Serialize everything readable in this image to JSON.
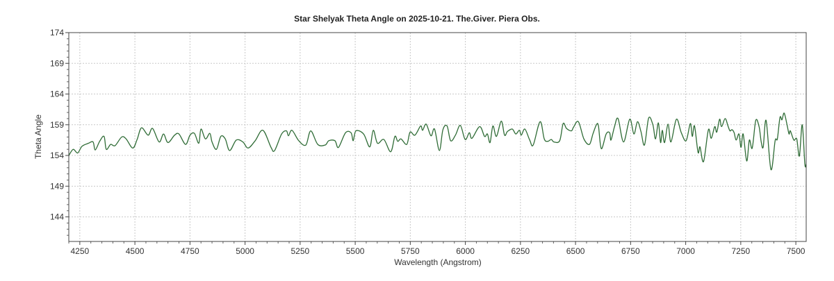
{
  "chart_data": {
    "type": "line",
    "title": "Star Shelyak Theta Angle on 2025-10-21.  The.Giver.  Piera Obs.",
    "xlabel": "Wavelength (Angstrom)",
    "ylabel": "Theta  Angle",
    "xlim": [
      4200,
      7547
    ],
    "ylim": [
      140,
      174
    ],
    "x_ticks": [
      4250,
      4500,
      4750,
      5000,
      5250,
      5500,
      5750,
      6000,
      6250,
      6500,
      6750,
      7000,
      7250,
      7500
    ],
    "y_ticks": [
      144,
      149,
      154,
      159,
      164,
      169,
      174
    ],
    "grid": true,
    "legend": "none",
    "line_color": "#2e6b35",
    "series": [
      {
        "x": [
          4200,
          4220,
          4240,
          4260,
          4290,
          4310,
          4320,
          4340,
          4360,
          4370,
          4390,
          4410,
          4440,
          4460,
          4490,
          4510,
          4530,
          4560,
          4580,
          4610,
          4630,
          4650,
          4680,
          4700,
          4730,
          4750,
          4770,
          4790,
          4800,
          4820,
          4840,
          4850,
          4870,
          4890,
          4910,
          4930,
          4960,
          4990,
          5014,
          5046,
          5081,
          5118,
          5134,
          5166,
          5188,
          5197,
          5213,
          5244,
          5276,
          5298,
          5330,
          5364,
          5380,
          5408,
          5424,
          5456,
          5481,
          5491,
          5503,
          5538,
          5566,
          5582,
          5601,
          5630,
          5661,
          5680,
          5693,
          5708,
          5734,
          5749,
          5771,
          5797,
          5806,
          5822,
          5844,
          5860,
          5882,
          5898,
          5917,
          5933,
          5955,
          5977,
          5999,
          6018,
          6030,
          6065,
          6087,
          6100,
          6112,
          6125,
          6141,
          6163,
          6178,
          6191,
          6213,
          6229,
          6245,
          6254,
          6270,
          6292,
          6308,
          6339,
          6358,
          6374,
          6390,
          6402,
          6428,
          6444,
          6459,
          6481,
          6491,
          6513,
          6538,
          6563,
          6579,
          6595,
          6604,
          6617,
          6639,
          6655,
          6661,
          6677,
          6693,
          6718,
          6746,
          6765,
          6781,
          6797,
          6813,
          6832,
          6851,
          6863,
          6876,
          6886,
          6894,
          6904,
          6920,
          6933,
          6958,
          6980,
          7002,
          7021,
          7030,
          7040,
          7056,
          7065,
          7081,
          7103,
          7116,
          7132,
          7141,
          7154,
          7163,
          7179,
          7192,
          7201,
          7210,
          7220,
          7229,
          7242,
          7251,
          7261,
          7277,
          7289,
          7302,
          7318,
          7333,
          7343,
          7352,
          7365,
          7387,
          7406,
          7416,
          7428,
          7437,
          7447,
          7460,
          7469,
          7475,
          7491,
          7504,
          7516,
          7529,
          7541,
          7547
        ],
        "y": [
          154.0,
          155,
          154.4,
          155.5,
          156,
          156.2,
          154.9,
          156.3,
          157.1,
          155,
          155.8,
          155.6,
          157,
          156.7,
          155.2,
          156.6,
          158.5,
          157.3,
          158.4,
          156.2,
          157.5,
          156.1,
          157.3,
          157.5,
          155.8,
          157.3,
          157.6,
          156,
          158.3,
          156.7,
          157.6,
          156.2,
          155,
          157.1,
          156.7,
          154.8,
          156.5,
          156.2,
          155.2,
          156.4,
          158.1,
          155.3,
          154.8,
          157.5,
          158,
          157.2,
          158.1,
          156.4,
          155.7,
          158,
          155.8,
          155.7,
          156.4,
          156.4,
          155.3,
          157.7,
          157.7,
          156.4,
          158,
          157.5,
          155.4,
          158.1,
          156,
          156.6,
          154.6,
          157.1,
          156.3,
          156.7,
          155.8,
          157.8,
          157.3,
          158.8,
          158.1,
          159.1,
          157.2,
          158.3,
          154.8,
          158.2,
          158.8,
          156.4,
          157.3,
          158.9,
          156.6,
          157.7,
          156.8,
          158.7,
          157.1,
          157.5,
          156.1,
          158.8,
          157.1,
          159.6,
          157.3,
          157.9,
          158.3,
          157.5,
          158.1,
          157.3,
          158.3,
          156.5,
          155.7,
          159.5,
          156.7,
          156.3,
          156.6,
          156.2,
          156.4,
          159.2,
          158.4,
          158,
          158.6,
          159.5,
          156.7,
          155.8,
          157.5,
          159,
          158.8,
          155.1,
          157.5,
          157.7,
          156.5,
          158.7,
          160,
          156.2,
          159.9,
          157.5,
          159.5,
          157.9,
          155.7,
          160.1,
          159,
          156.7,
          159.3,
          156.1,
          158.1,
          156.1,
          159.1,
          156.2,
          159.9,
          157.7,
          156.4,
          159.2,
          157.1,
          158.8,
          154.5,
          155.4,
          153,
          158.2,
          156.8,
          158.7,
          157.8,
          159.9,
          158.7,
          160,
          158.8,
          158,
          158.2,
          157.7,
          156.5,
          157.5,
          155.3,
          157.5,
          153.1,
          156.5,
          155.2,
          159.7,
          158.7,
          156.2,
          155.4,
          159.7,
          151.7,
          156.4,
          156.7,
          160.2,
          159.8,
          160.9,
          159,
          157.5,
          158,
          156.5,
          156.7,
          153.9,
          159,
          152.6,
          152.6
        ]
      }
    ]
  }
}
